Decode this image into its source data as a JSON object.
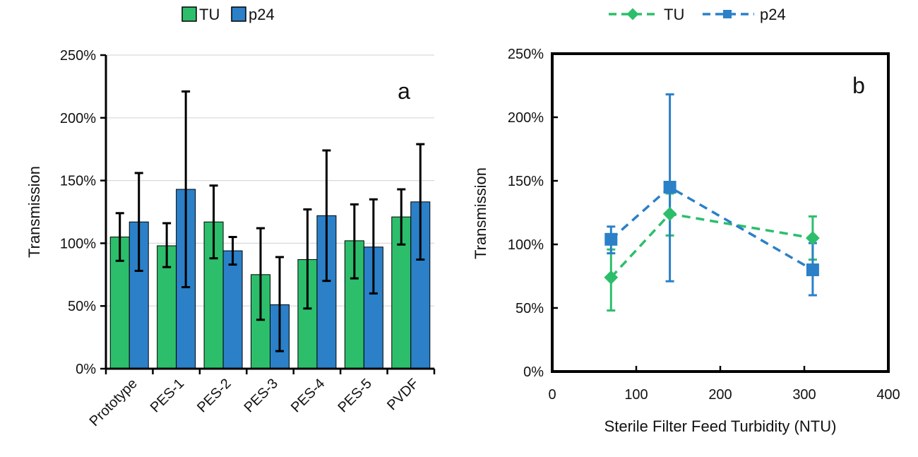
{
  "colors": {
    "tu": "#2dbe6c",
    "p24": "#2b80c8",
    "grid": "#d9d9d9",
    "axis": "#000000"
  },
  "chart_data": [
    {
      "type": "bar",
      "panel_label": "a",
      "categories": [
        "Prototype",
        "PES-1",
        "PES-2",
        "PES-3",
        "PES-4",
        "PES-5",
        "PVDF"
      ],
      "series": [
        {
          "name": "TU",
          "values": [
            105,
            98,
            117,
            75,
            87,
            102,
            121
          ],
          "err_low": [
            86,
            81,
            88,
            39,
            48,
            72,
            99
          ],
          "err_high": [
            124,
            116,
            146,
            112,
            127,
            131,
            143
          ]
        },
        {
          "name": "p24",
          "values": [
            117,
            143,
            94,
            51,
            122,
            97,
            133
          ],
          "err_low": [
            78,
            65,
            83,
            14,
            70,
            60,
            87
          ],
          "err_high": [
            156,
            221,
            105,
            89,
            174,
            135,
            179
          ]
        }
      ],
      "ylabel": "Transmission",
      "ylim": [
        0,
        250
      ],
      "yticks": [
        "0%",
        "50%",
        "100%",
        "150%",
        "200%",
        "250%"
      ],
      "legend": {
        "position": "top",
        "entries": [
          "TU",
          "p24"
        ]
      },
      "grid": true
    },
    {
      "type": "line",
      "panel_label": "b",
      "series": [
        {
          "name": "TU",
          "marker": "diamond",
          "style": "dashed",
          "x": [
            70,
            140,
            310
          ],
          "y": [
            74,
            124,
            105
          ],
          "err_low": [
            48,
            107,
            88
          ],
          "err_high": [
            96,
            140,
            122
          ]
        },
        {
          "name": "p24",
          "marker": "square",
          "style": "dashed",
          "x": [
            70,
            140,
            310
          ],
          "y": [
            104,
            145,
            80
          ],
          "err_low": [
            93,
            71,
            60
          ],
          "err_high": [
            114,
            218,
            101
          ]
        }
      ],
      "xlabel": "Sterile Filter Feed Turbidity (NTU)",
      "ylabel": "Transmission",
      "xlim": [
        0,
        400
      ],
      "ylim": [
        0,
        250
      ],
      "xticks": [
        "0",
        "100",
        "200",
        "300",
        "400"
      ],
      "yticks": [
        "0%",
        "50%",
        "100%",
        "150%",
        "200%",
        "250%"
      ],
      "legend": {
        "position": "top",
        "entries": [
          "TU",
          "p24"
        ]
      },
      "grid": false
    }
  ]
}
